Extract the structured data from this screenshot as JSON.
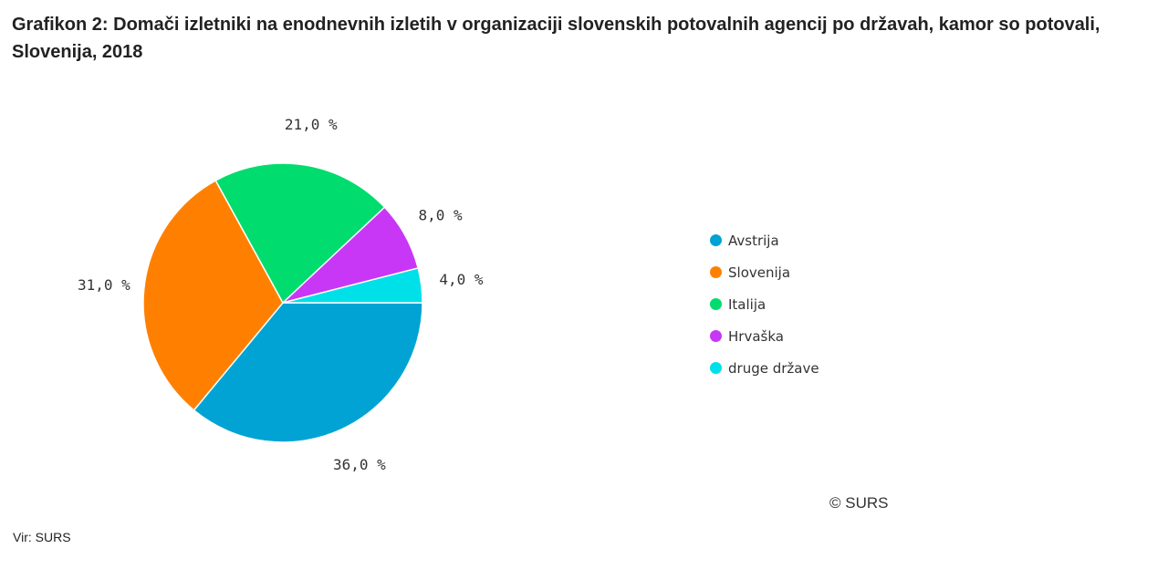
{
  "chart_data": {
    "type": "pie",
    "title": "Grafikon 2: Domači izletniki na enodnevnih izletih v organizaciji slovenskih potovalnih agencij po državah, kamor so potovali, Slovenija, 2018",
    "unit": "%",
    "slices": [
      {
        "label": "Avstrija",
        "value": 36.0,
        "display": "36,0 %",
        "color": "#00a3d4"
      },
      {
        "label": "Slovenija",
        "value": 31.0,
        "display": "31,0 %",
        "color": "#ff8000"
      },
      {
        "label": "Italija",
        "value": 21.0,
        "display": "21,0 %",
        "color": "#00dc6e"
      },
      {
        "label": "Hrvaška",
        "value": 8.0,
        "display": "8,0 %",
        "color": "#c837f5"
      },
      {
        "label": "druge države",
        "value": 4.0,
        "display": "4,0 %",
        "color": "#00e0e8"
      }
    ],
    "legend_position": "right"
  },
  "copyright": "© SURS",
  "source": "Vir: SURS"
}
